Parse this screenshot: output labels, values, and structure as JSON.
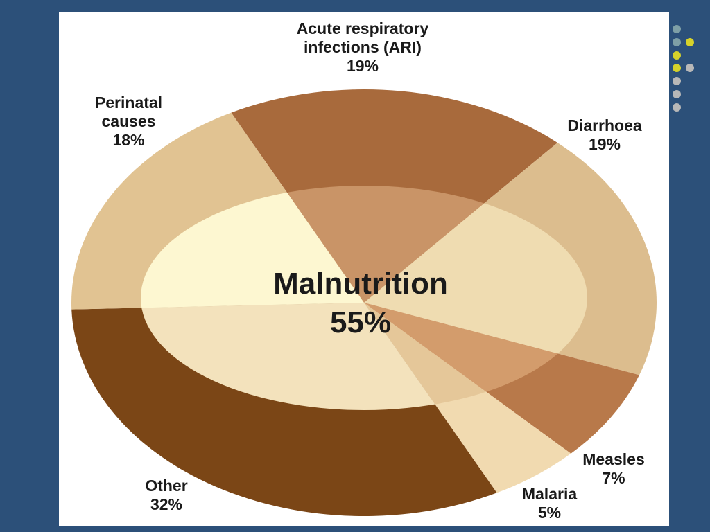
{
  "chart_data": {
    "type": "pie",
    "categories": [
      "Acute respiratory infections (ARI)",
      "Diarrhoea",
      "Measles",
      "Malaria",
      "Other",
      "Perinatal causes"
    ],
    "values": [
      19,
      19,
      7,
      5,
      32,
      18
    ],
    "value_labels": [
      "19%",
      "19%",
      "7%",
      "5%",
      "32%",
      "18%"
    ],
    "colors": [
      "#a86a3c",
      "#dcbd8e",
      "#b8794a",
      "#f1dab0",
      "#7b4616",
      "#e1c392"
    ],
    "inner_colors": [
      "#c99467",
      "#efdcb1",
      "#d39c6c",
      "#e5c799",
      "#f3e2bc",
      "#fdf7d1"
    ],
    "center": {
      "name": "Malnutrition",
      "value": 55,
      "value_label": "55%"
    }
  }
}
